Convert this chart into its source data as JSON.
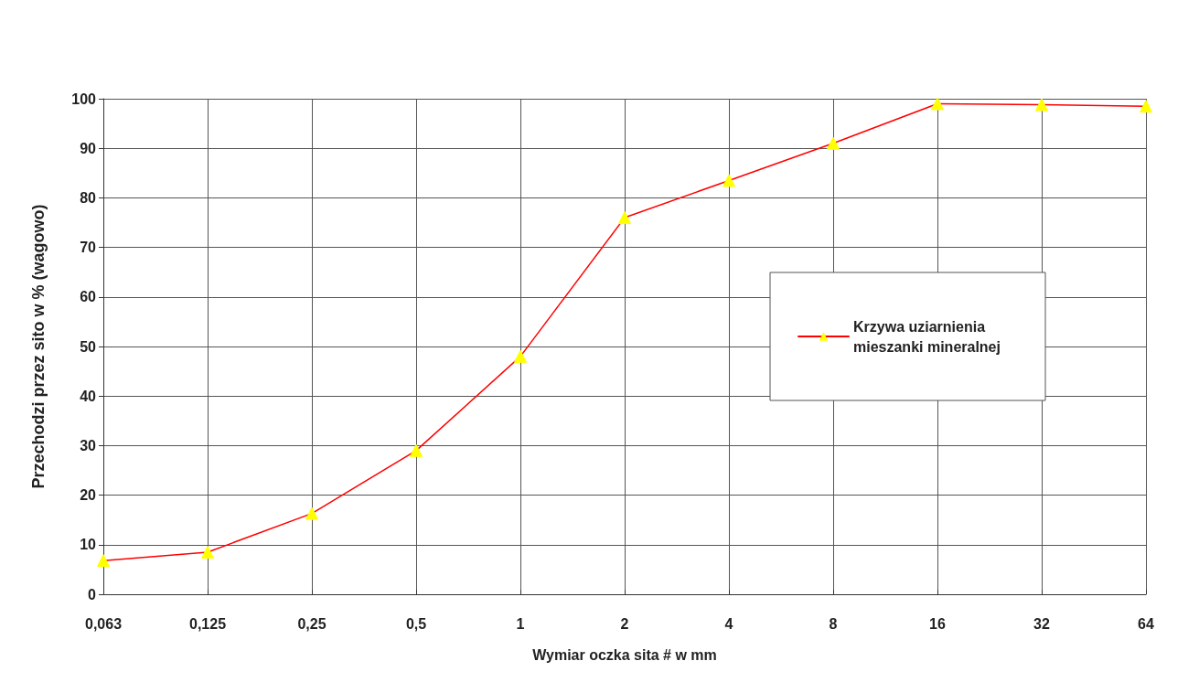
{
  "chart_data": {
    "type": "line",
    "xlabel": "Wymiar oczka sita # w mm",
    "ylabel": "Przechodzi przez sito w % (wagowo)",
    "categories": [
      "0,063",
      "0,125",
      "0,25",
      "0,5",
      "1",
      "2",
      "4",
      "8",
      "16",
      "32",
      "64"
    ],
    "series": [
      {
        "name": "Krzywa uziarnienia mieszanki mineralnej",
        "color": "#ff0000",
        "colors": [
          "#ffff00",
          "#ffff00",
          "#ffff00",
          "#ffff00",
          "#ffff00",
          "#ffff00",
          "#ffff00",
          "#ffff00",
          "#ffff00",
          "#ffff00",
          "#ffff00"
        ],
        "values": [
          6.8,
          8.5,
          16.3,
          29,
          48,
          76,
          83.5,
          91,
          99,
          98.8,
          98.5
        ]
      }
    ],
    "ylim": [
      0,
      100
    ],
    "yticks": [
      0,
      10,
      20,
      30,
      40,
      50,
      60,
      70,
      80,
      90,
      100
    ],
    "grid": true,
    "legend": "right",
    "marker": "triangle",
    "line_style": "solid"
  }
}
